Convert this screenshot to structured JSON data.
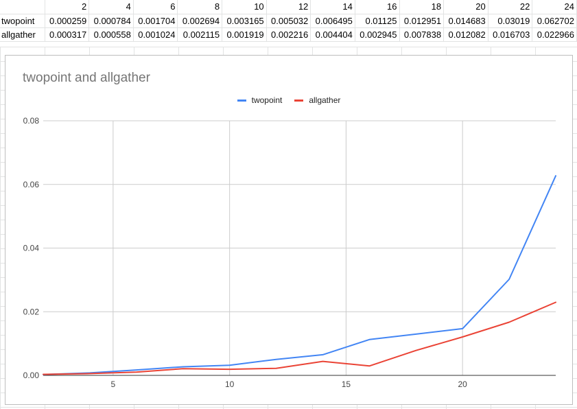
{
  "sheet": {
    "header": [
      "",
      "2",
      "4",
      "6",
      "8",
      "10",
      "12",
      "14",
      "16",
      "18",
      "20",
      "22",
      "24"
    ],
    "rows": [
      [
        "twopoint",
        "0.000259",
        "0.000784",
        "0.001704",
        "0.002694",
        "0.003165",
        "0.005032",
        "0.006495",
        "0.01125",
        "0.012951",
        "0.014683",
        "0.03019",
        "0.062702"
      ],
      [
        "allgather",
        "0.000317",
        "0.000558",
        "0.001024",
        "0.002115",
        "0.001919",
        "0.002216",
        "0.004404",
        "0.002945",
        "0.007838",
        "0.012082",
        "0.016703",
        "0.022966"
      ]
    ]
  },
  "chart_data": {
    "type": "line",
    "title": "twopoint and allgather",
    "xlabel": "",
    "ylabel": "",
    "x": [
      2,
      4,
      6,
      8,
      10,
      12,
      14,
      16,
      18,
      20,
      22,
      24
    ],
    "xlim": [
      2,
      24
    ],
    "ylim": [
      0,
      0.08
    ],
    "x_ticks": [
      5,
      10,
      15,
      20
    ],
    "y_ticks": [
      "0.00",
      "0.02",
      "0.04",
      "0.06",
      "0.08"
    ],
    "grid": true,
    "legend_position": "top",
    "series": [
      {
        "name": "twopoint",
        "color": "#4285f4",
        "values": [
          0.000259,
          0.000784,
          0.001704,
          0.002694,
          0.003165,
          0.005032,
          0.006495,
          0.01125,
          0.012951,
          0.014683,
          0.03019,
          0.062702
        ]
      },
      {
        "name": "allgather",
        "color": "#ea4335",
        "values": [
          0.000317,
          0.000558,
          0.001024,
          0.002115,
          0.001919,
          0.002216,
          0.004404,
          0.002945,
          0.007838,
          0.012082,
          0.016703,
          0.022966
        ]
      }
    ]
  }
}
